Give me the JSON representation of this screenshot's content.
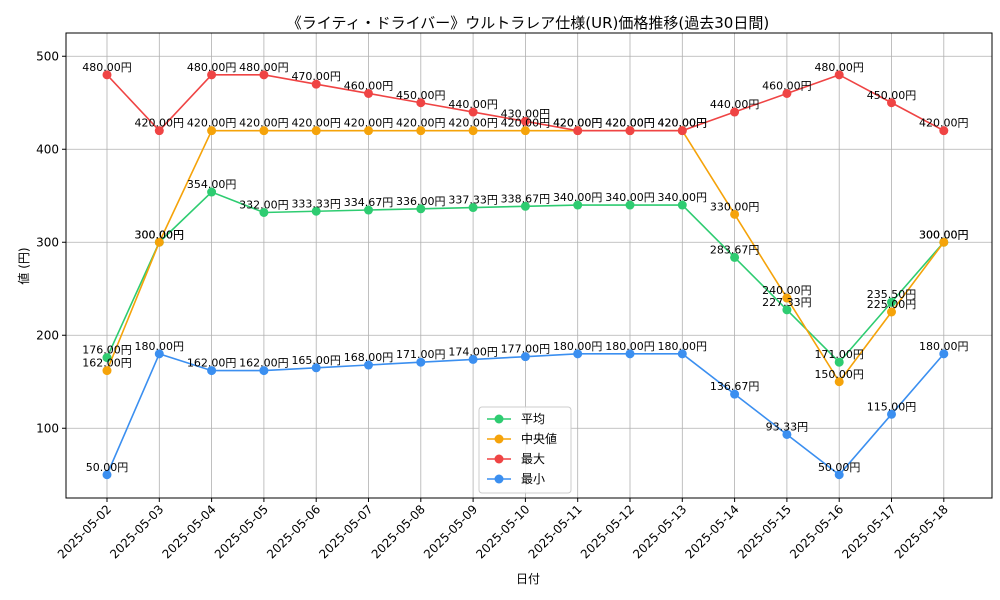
{
  "chart_data": {
    "type": "line",
    "title": "《ライティ・ドライバー》ウルトラレア仕様(UR)価格推移(過去30日間)",
    "xlabel": "日付",
    "ylabel": "値 (円)",
    "ylim": [
      25,
      525
    ],
    "yticks": [
      100,
      200,
      300,
      400,
      500
    ],
    "grid": true,
    "legend_position": "bottom-center",
    "value_suffix": "円",
    "categories": [
      "2025-05-02",
      "2025-05-03",
      "2025-05-04",
      "2025-05-05",
      "2025-05-06",
      "2025-05-07",
      "2025-05-08",
      "2025-05-09",
      "2025-05-10",
      "2025-05-11",
      "2025-05-12",
      "2025-05-13",
      "2025-05-14",
      "2025-05-15",
      "2025-05-16",
      "2025-05-17",
      "2025-05-18"
    ],
    "series": [
      {
        "name": "平均",
        "color": "#2ecc71",
        "values": [
          176.0,
          300.0,
          354.0,
          332.0,
          333.33,
          334.67,
          336.0,
          337.33,
          338.67,
          340.0,
          340.0,
          340.0,
          283.67,
          227.33,
          171.0,
          235.5,
          300.0
        ]
      },
      {
        "name": "中央値",
        "color": "#f5a30a",
        "values": [
          162.0,
          300.0,
          420.0,
          420.0,
          420.0,
          420.0,
          420.0,
          420.0,
          420.0,
          420.0,
          420.0,
          420.0,
          330.0,
          240.0,
          150.0,
          225.0,
          300.0
        ]
      },
      {
        "name": "最大",
        "color": "#ef4444",
        "values": [
          480.0,
          420.0,
          480.0,
          480.0,
          470.0,
          460.0,
          450.0,
          440.0,
          430.0,
          420.0,
          420.0,
          420.0,
          440.0,
          460.0,
          480.0,
          450.0,
          420.0
        ]
      },
      {
        "name": "最小",
        "color": "#3b8ff0",
        "values": [
          50.0,
          180.0,
          162.0,
          162.0,
          165.0,
          168.0,
          171.0,
          174.0,
          177.0,
          180.0,
          180.0,
          180.0,
          136.67,
          93.33,
          50.0,
          115.0,
          180.0
        ]
      }
    ]
  }
}
